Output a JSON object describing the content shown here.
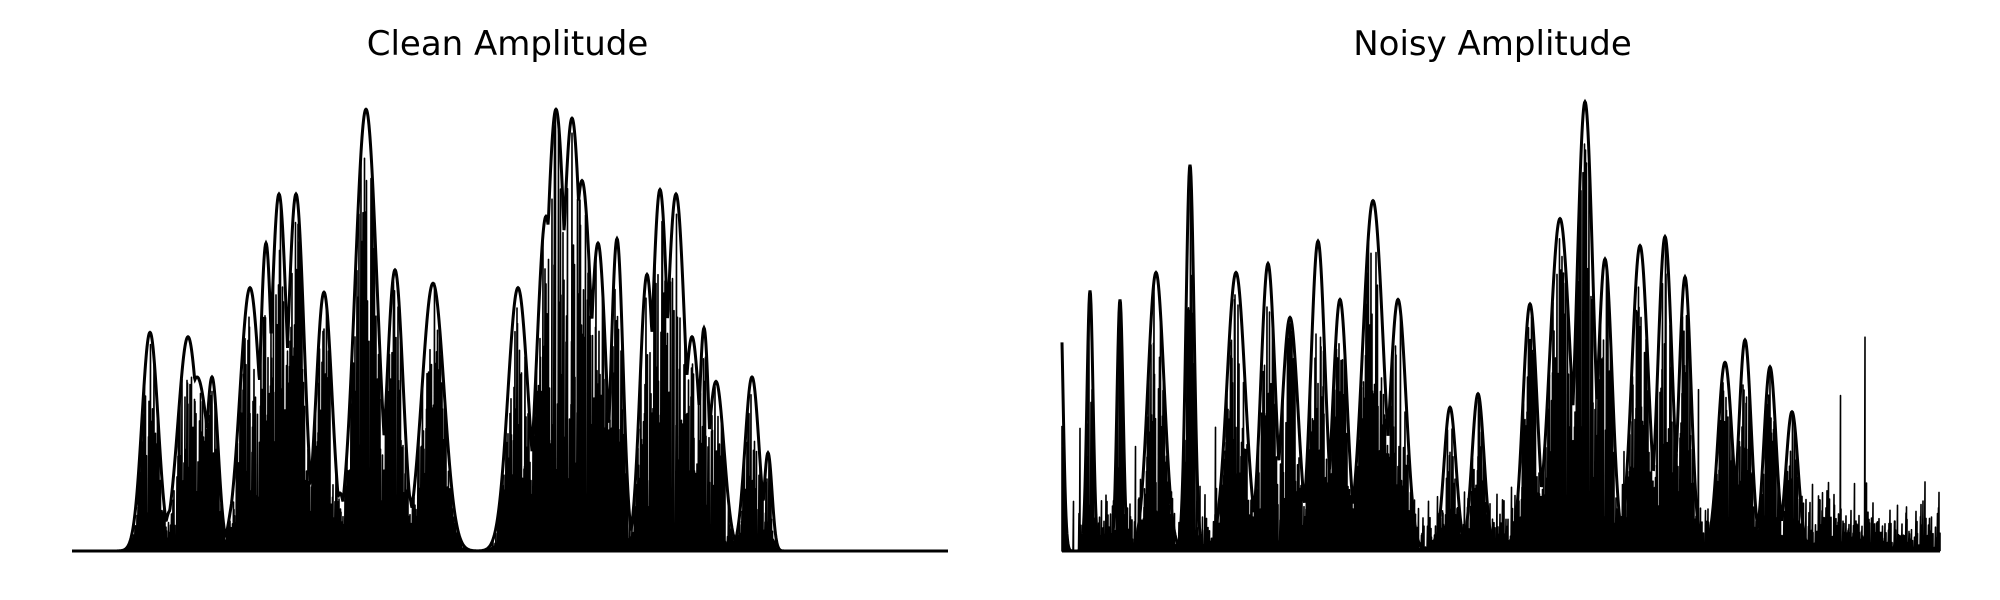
{
  "chart_data": [
    {
      "type": "line",
      "title": "Clean Amplitude",
      "axes_visible": false,
      "grid": false,
      "color": "#000000",
      "x_range": [
        0,
        1000
      ],
      "ylim": [
        0,
        1.0
      ],
      "bursts": [
        {
          "x": 150,
          "w": 8,
          "amp": 0.49
        },
        {
          "x": 170,
          "w": 5,
          "amp": 0.09
        },
        {
          "x": 188,
          "w": 10,
          "amp": 0.48
        },
        {
          "x": 197,
          "w": 12,
          "amp": 0.39
        },
        {
          "x": 212,
          "w": 6,
          "amp": 0.39
        },
        {
          "x": 236,
          "w": 6,
          "amp": 0.14
        },
        {
          "x": 250,
          "w": 10,
          "amp": 0.59
        },
        {
          "x": 266,
          "w": 6,
          "amp": 0.69
        },
        {
          "x": 279,
          "w": 8,
          "amp": 0.8
        },
        {
          "x": 296,
          "w": 8,
          "amp": 0.8
        },
        {
          "x": 312,
          "w": 5,
          "amp": 0.16
        },
        {
          "x": 324,
          "w": 8,
          "amp": 0.58
        },
        {
          "x": 340,
          "w": 5,
          "amp": 0.13
        },
        {
          "x": 353,
          "w": 5,
          "amp": 0.16
        },
        {
          "x": 366,
          "w": 11,
          "amp": 0.99
        },
        {
          "x": 395,
          "w": 8,
          "amp": 0.63
        },
        {
          "x": 408,
          "w": 5,
          "amp": 0.13
        },
        {
          "x": 433,
          "w": 11,
          "amp": 0.6
        },
        {
          "x": 518,
          "w": 10,
          "amp": 0.59
        },
        {
          "x": 530,
          "w": 5,
          "amp": 0.12
        },
        {
          "x": 546,
          "w": 9,
          "amp": 0.75
        },
        {
          "x": 556,
          "w": 10,
          "amp": 0.99
        },
        {
          "x": 572,
          "w": 10,
          "amp": 0.97
        },
        {
          "x": 582,
          "w": 10,
          "amp": 0.83
        },
        {
          "x": 598,
          "w": 8,
          "amp": 0.69
        },
        {
          "x": 617,
          "w": 6,
          "amp": 0.7
        },
        {
          "x": 647,
          "w": 7,
          "amp": 0.62
        },
        {
          "x": 660,
          "w": 8,
          "amp": 0.81
        },
        {
          "x": 676,
          "w": 9,
          "amp": 0.8
        },
        {
          "x": 692,
          "w": 8,
          "amp": 0.48
        },
        {
          "x": 704,
          "w": 5,
          "amp": 0.5
        },
        {
          "x": 716,
          "w": 8,
          "amp": 0.38
        },
        {
          "x": 752,
          "w": 7,
          "amp": 0.39
        },
        {
          "x": 768,
          "w": 4,
          "amp": 0.22
        }
      ]
    },
    {
      "type": "line",
      "title": "Noisy Amplitude",
      "axes_visible": false,
      "grid": false,
      "color": "#000000",
      "x_range": [
        0,
        1000
      ],
      "ylim": [
        0,
        1.0
      ],
      "noise_floor": 0.16,
      "bursts": [
        {
          "x": 1060,
          "w": 3,
          "amp": 0.58
        },
        {
          "x": 1090,
          "w": 3,
          "amp": 0.58
        },
        {
          "x": 1120,
          "w": 3,
          "amp": 0.56
        },
        {
          "x": 1156,
          "w": 8,
          "amp": 0.62
        },
        {
          "x": 1190,
          "w": 4,
          "amp": 0.86
        },
        {
          "x": 1236,
          "w": 9,
          "amp": 0.62
        },
        {
          "x": 1268,
          "w": 7,
          "amp": 0.64
        },
        {
          "x": 1290,
          "w": 8,
          "amp": 0.52
        },
        {
          "x": 1318,
          "w": 7,
          "amp": 0.69
        },
        {
          "x": 1340,
          "w": 7,
          "amp": 0.56
        },
        {
          "x": 1373,
          "w": 10,
          "amp": 0.78
        },
        {
          "x": 1398,
          "w": 8,
          "amp": 0.56
        },
        {
          "x": 1450,
          "w": 6,
          "amp": 0.32
        },
        {
          "x": 1478,
          "w": 6,
          "amp": 0.35
        },
        {
          "x": 1530,
          "w": 7,
          "amp": 0.55
        },
        {
          "x": 1560,
          "w": 10,
          "amp": 0.74
        },
        {
          "x": 1585,
          "w": 8,
          "amp": 1.0
        },
        {
          "x": 1605,
          "w": 7,
          "amp": 0.65
        },
        {
          "x": 1640,
          "w": 8,
          "amp": 0.68
        },
        {
          "x": 1665,
          "w": 7,
          "amp": 0.7
        },
        {
          "x": 1685,
          "w": 6,
          "amp": 0.61
        },
        {
          "x": 1725,
          "w": 7,
          "amp": 0.42
        },
        {
          "x": 1745,
          "w": 6,
          "amp": 0.47
        },
        {
          "x": 1770,
          "w": 6,
          "amp": 0.41
        },
        {
          "x": 1792,
          "w": 6,
          "amp": 0.31
        }
      ]
    }
  ]
}
